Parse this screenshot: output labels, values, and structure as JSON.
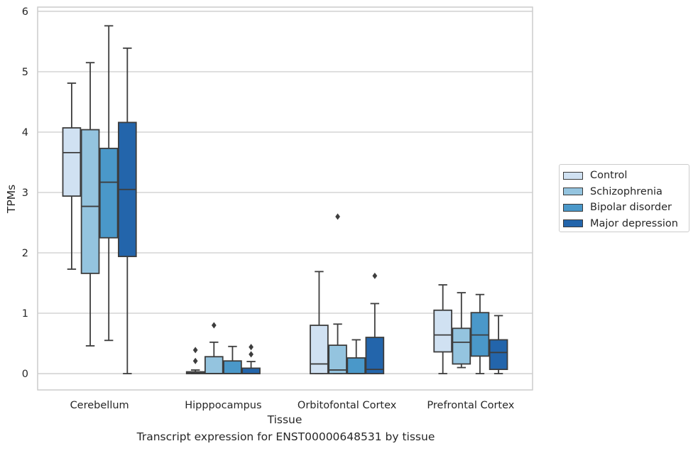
{
  "chart_data": {
    "type": "box",
    "title": "",
    "caption": "Transcript expression for ENST00000648531 by tissue",
    "xlabel": "Tissue",
    "ylabel": "TPMs",
    "ylim": [
      -0.27,
      6.07
    ],
    "yticks": [
      "0",
      "1",
      "2",
      "3",
      "4",
      "5",
      "6"
    ],
    "grid": "horizontal",
    "legend_position": "right",
    "categories": [
      "Cerebellum",
      "Hipppocampus",
      "Orbitofontal Cortex",
      "Prefrontal Cortex"
    ],
    "series": [
      {
        "name": "Control",
        "color": "#d0e1f2",
        "boxes": [
          {
            "min": 1.73,
            "q1": 2.94,
            "median": 3.66,
            "q3": 4.07,
            "max": 4.81,
            "outliers": []
          },
          {
            "min": 0.0,
            "q1": 0.0,
            "median": 0.01,
            "q3": 0.03,
            "max": 0.06,
            "outliers": [
              0.21,
              0.39
            ]
          },
          {
            "min": 0.0,
            "q1": 0.0,
            "median": 0.16,
            "q3": 0.8,
            "max": 1.69,
            "outliers": []
          },
          {
            "min": 0.0,
            "q1": 0.36,
            "median": 0.64,
            "q3": 1.05,
            "max": 1.47,
            "outliers": []
          }
        ]
      },
      {
        "name": "Schizophrenia",
        "color": "#94c4df",
        "boxes": [
          {
            "min": 0.46,
            "q1": 1.66,
            "median": 2.77,
            "q3": 4.04,
            "max": 5.15,
            "outliers": []
          },
          {
            "min": 0.0,
            "q1": 0.0,
            "median": 0.0,
            "q3": 0.28,
            "max": 0.52,
            "outliers": [
              0.8
            ]
          },
          {
            "min": 0.0,
            "q1": 0.0,
            "median": 0.06,
            "q3": 0.47,
            "max": 0.82,
            "outliers": [
              2.6
            ]
          },
          {
            "min": 0.1,
            "q1": 0.16,
            "median": 0.52,
            "q3": 0.75,
            "max": 1.34,
            "outliers": []
          }
        ]
      },
      {
        "name": "Bipolar disorder",
        "color": "#4a98c9",
        "boxes": [
          {
            "min": 0.55,
            "q1": 2.25,
            "median": 3.17,
            "q3": 3.73,
            "max": 5.76,
            "outliers": []
          },
          {
            "min": 0.0,
            "q1": 0.0,
            "median": 0.0,
            "q3": 0.21,
            "max": 0.45,
            "outliers": []
          },
          {
            "min": 0.0,
            "q1": 0.0,
            "median": 0.0,
            "q3": 0.26,
            "max": 0.56,
            "outliers": []
          },
          {
            "min": 0.0,
            "q1": 0.29,
            "median": 0.64,
            "q3": 1.01,
            "max": 1.31,
            "outliers": []
          }
        ]
      },
      {
        "name": "Major depression",
        "color": "#2365ab",
        "boxes": [
          {
            "min": 0.0,
            "q1": 1.94,
            "median": 3.05,
            "q3": 4.16,
            "max": 5.39,
            "outliers": []
          },
          {
            "min": 0.0,
            "q1": 0.0,
            "median": 0.0,
            "q3": 0.09,
            "max": 0.2,
            "outliers": [
              0.32,
              0.44
            ]
          },
          {
            "min": 0.0,
            "q1": 0.0,
            "median": 0.07,
            "q3": 0.6,
            "max": 1.16,
            "outliers": [
              1.62
            ]
          },
          {
            "min": 0.0,
            "q1": 0.07,
            "median": 0.35,
            "q3": 0.56,
            "max": 0.96,
            "outliers": []
          }
        ]
      }
    ]
  }
}
